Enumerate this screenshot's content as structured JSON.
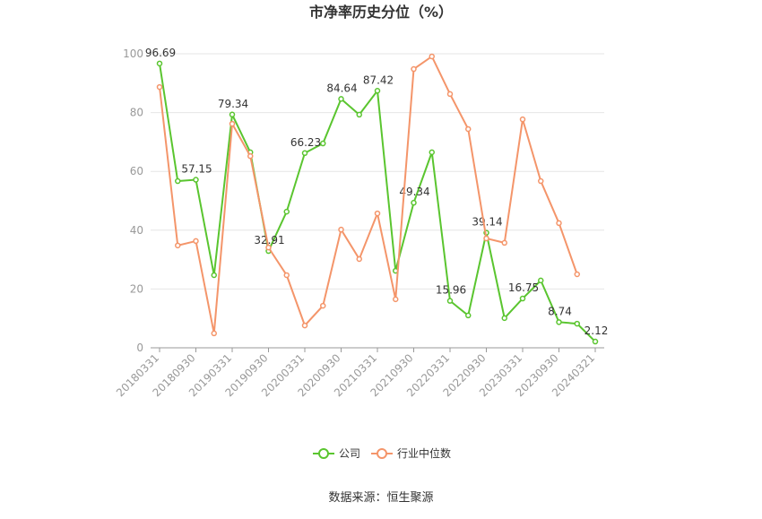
{
  "chart_data": {
    "type": "line",
    "title": "市净率历史分位（%）",
    "source": "数据来源：恒生聚源",
    "categories": [
      "20180331",
      null,
      "20180930",
      null,
      "20190331",
      null,
      "20190930",
      null,
      "20200331",
      null,
      "20200930",
      null,
      "20210331",
      null,
      "20210930",
      null,
      "20220331",
      null,
      "20220930",
      null,
      "20230331",
      null,
      "20230930",
      null,
      "20240321"
    ],
    "series": [
      {
        "name": "公司",
        "color": "#5ac52f",
        "values": [
          96.69,
          56.7,
          57.15,
          24.7,
          79.34,
          66.5,
          32.91,
          46.3,
          66.23,
          69.5,
          84.64,
          79.3,
          87.42,
          26.2,
          49.34,
          66.5,
          15.96,
          11.0,
          39.14,
          10.1,
          16.75,
          22.9,
          8.74,
          8.2,
          2.12
        ],
        "value_labels": [
          "96.69",
          null,
          "57.15",
          null,
          "79.34",
          null,
          "32.91",
          null,
          "66.23",
          null,
          "84.64",
          null,
          "87.42",
          null,
          "49.34",
          null,
          "15.96",
          null,
          "39.14",
          null,
          "16.75",
          null,
          "8.74",
          null,
          "2.12"
        ]
      },
      {
        "name": "行业中位数",
        "color": "#f4956a",
        "values": [
          88.7,
          34.8,
          36.3,
          4.9,
          76.2,
          65.2,
          34.1,
          24.7,
          7.6,
          14.3,
          40.2,
          30.2,
          45.7,
          16.5,
          94.8,
          99.1,
          86.3,
          74.4,
          37.2,
          35.7,
          77.7,
          56.7,
          42.4,
          25.0,
          null
        ]
      }
    ],
    "ylim": [
      0,
      100
    ],
    "yticks": [
      0,
      20,
      40,
      60,
      80,
      100
    ],
    "grid": true,
    "legend": "bottom"
  }
}
